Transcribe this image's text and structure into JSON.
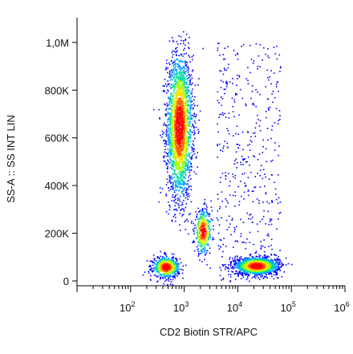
{
  "chart_data": {
    "type": "scatter",
    "title": "",
    "xlabel": "CD2 Biotin STR/APC",
    "ylabel": "SS-A :: SS INT LIN",
    "x_scale": "log",
    "xlim": [
      10,
      1000000
    ],
    "ylim": [
      0,
      1050000
    ],
    "x_ticks": [
      {
        "base": "10",
        "exp": "2",
        "value": 100
      },
      {
        "base": "10",
        "exp": "3",
        "value": 1000
      },
      {
        "base": "10",
        "exp": "4",
        "value": 10000
      },
      {
        "base": "10",
        "exp": "5",
        "value": 100000
      },
      {
        "base": "10",
        "exp": "6",
        "value": 1000000
      }
    ],
    "y_ticks": [
      {
        "label": "0",
        "value": 0
      },
      {
        "label": "200K",
        "value": 200000
      },
      {
        "label": "400K",
        "value": 400000
      },
      {
        "label": "600K",
        "value": 600000
      },
      {
        "label": "800K",
        "value": 800000
      },
      {
        "label": "1,0M",
        "value": 1000000
      }
    ],
    "populations": [
      {
        "description_label": "",
        "x_center": 800,
        "y_center": 650000,
        "x_log_spread": 0.12,
        "y_spread": 150000,
        "count": 2600
      },
      {
        "description_label": "",
        "x_center": 2200,
        "y_center": 210000,
        "x_log_spread": 0.08,
        "y_spread": 45000,
        "count": 450
      },
      {
        "description_label": "",
        "x_center": 450,
        "y_center": 60000,
        "x_log_spread": 0.12,
        "y_spread": 22000,
        "count": 650
      },
      {
        "description_label": "",
        "x_center": 22000,
        "y_center": 65000,
        "x_log_spread": 0.2,
        "y_spread": 18000,
        "count": 1500
      }
    ],
    "colormap": [
      "#0000ff",
      "#00a0ff",
      "#00e0a0",
      "#a0ff00",
      "#ffe000",
      "#ff6000",
      "#ff0000"
    ],
    "grid": false,
    "legend": "none"
  }
}
